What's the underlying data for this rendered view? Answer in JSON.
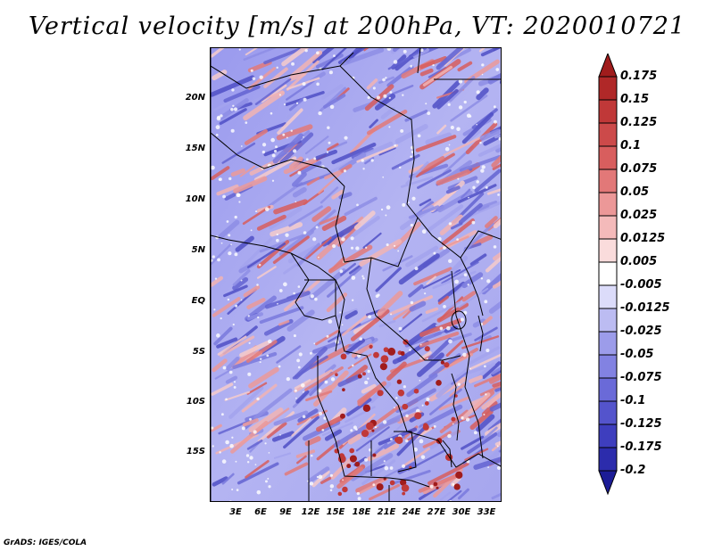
{
  "title": "Vertical velocity [m/s] at 200hPa, VT: 2020010721",
  "footer": "GrADS: IGES/COLA",
  "latitude_labels": [
    "20N",
    "15N",
    "10N",
    "5N",
    "EQ",
    "5S",
    "10S",
    "15S"
  ],
  "longitude_labels": [
    "3E",
    "6E",
    "9E",
    "12E",
    "15E",
    "18E",
    "21E",
    "24E",
    "27E",
    "30E",
    "33E"
  ],
  "colorbar": {
    "labels": [
      "0.175",
      "0.15",
      "0.125",
      "0.1",
      "0.075",
      "0.05",
      "0.025",
      "0.0125",
      "0.005",
      "-0.005",
      "-0.0125",
      "-0.025",
      "-0.05",
      "-0.075",
      "-0.1",
      "-0.125",
      "-0.175",
      "-0.2"
    ],
    "colors": [
      "#a01c1c",
      "#b02828",
      "#c03838",
      "#cc4a4a",
      "#d85e5e",
      "#e27878",
      "#ec9898",
      "#f4baba",
      "#fadcdc",
      "#ffffff",
      "#dcdcfa",
      "#bcbcf2",
      "#9c9cea",
      "#8282e2",
      "#6a6ad8",
      "#5454cc",
      "#3e3ebe",
      "#2c2cac",
      "#1c1c96"
    ]
  }
}
